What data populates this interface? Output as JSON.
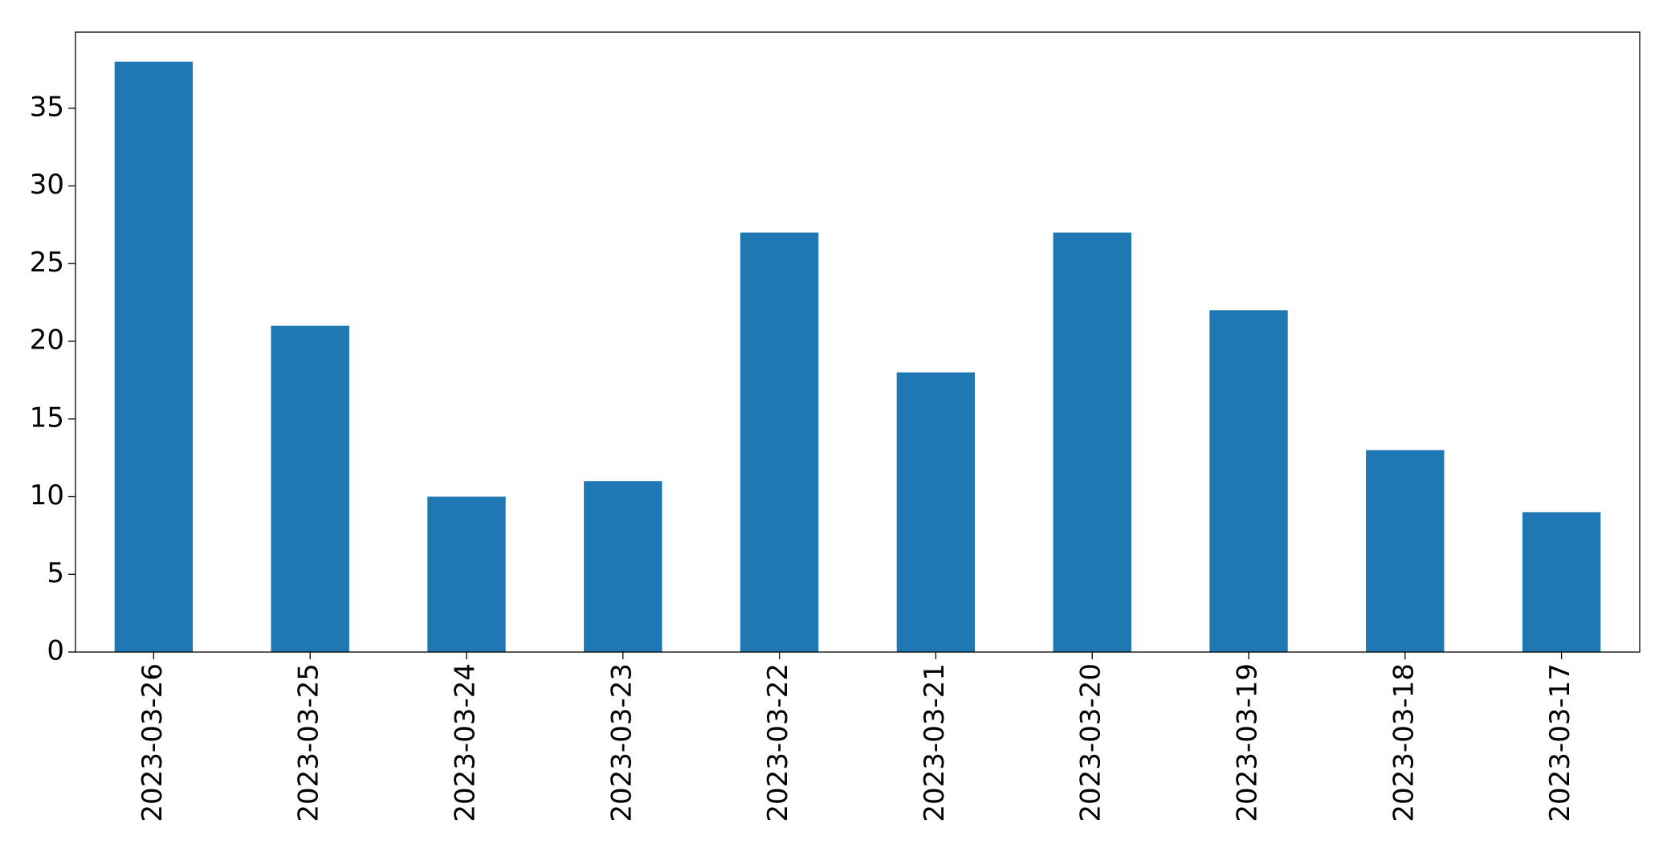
{
  "chart_data": {
    "type": "bar",
    "categories": [
      "2023-03-26",
      "2023-03-25",
      "2023-03-24",
      "2023-03-23",
      "2023-03-22",
      "2023-03-21",
      "2023-03-20",
      "2023-03-19",
      "2023-03-18",
      "2023-03-17"
    ],
    "values": [
      38,
      21,
      10,
      11,
      27,
      18,
      27,
      22,
      13,
      9
    ],
    "color": "#1f77b4",
    "ylim": [
      0,
      39.9
    ],
    "yticks": [
      0,
      5,
      10,
      15,
      20,
      25,
      30,
      35
    ],
    "grid": false
  }
}
